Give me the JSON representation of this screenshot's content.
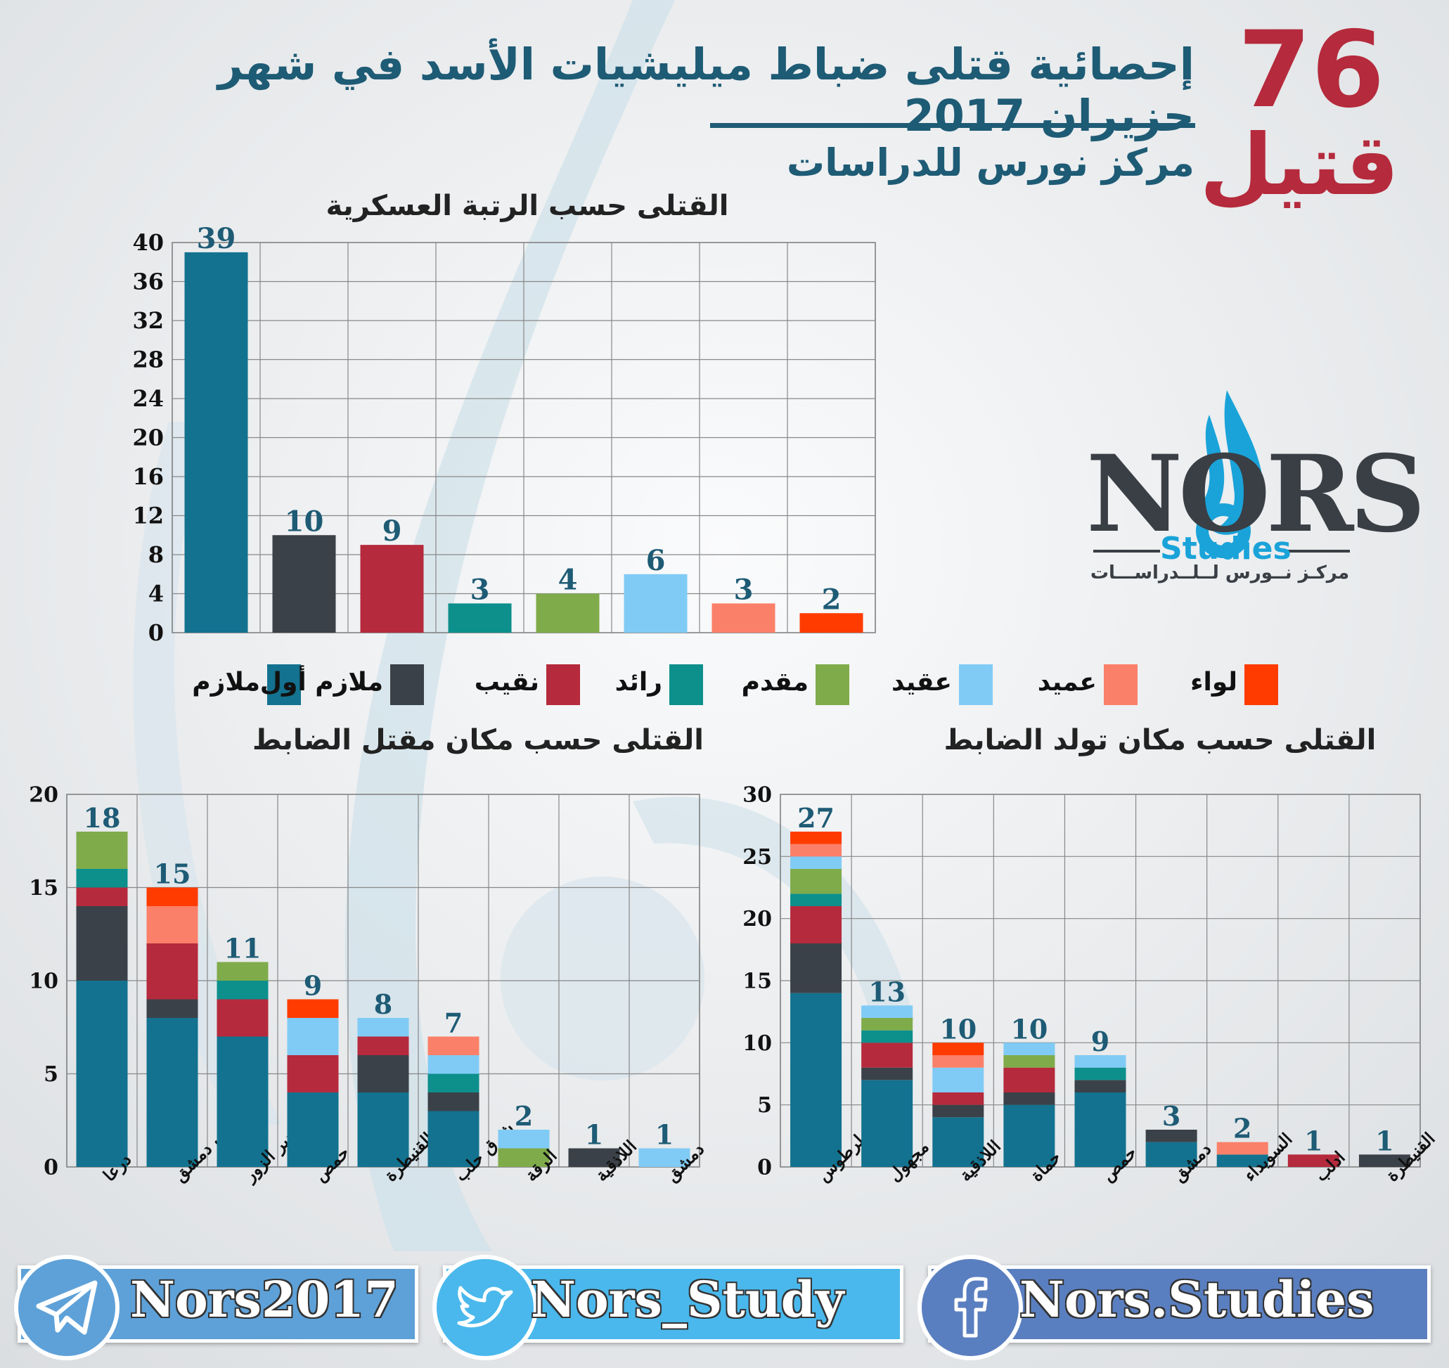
{
  "header": {
    "title": "إحصائية قتلى ضباط ميليشيات الأسد في شهر حزيران 2017",
    "subtitle": "مركز نورس للدراسات",
    "total_number": "76",
    "total_word": "قتيل"
  },
  "logo": {
    "main": "NORS",
    "studies": "Studies",
    "arabic": "مركـز نــورس لــلــدراســـات"
  },
  "legend": [
    {
      "name": "ملازم",
      "color": "#13728f"
    },
    {
      "name": "ملازم أول",
      "color": "#3b4148"
    },
    {
      "name": "نقيب",
      "color": "#b52a3c"
    },
    {
      "name": "رائد",
      "color": "#0d8f8c"
    },
    {
      "name": "مقدم",
      "color": "#7fab4a"
    },
    {
      "name": "عقيد",
      "color": "#80cbf5"
    },
    {
      "name": "عميد",
      "color": "#fb8069"
    },
    {
      "name": "لواء",
      "color": "#ff3b00"
    }
  ],
  "social": {
    "telegram": "Nors2017",
    "twitter": "Nors_Study",
    "facebook": "Nors.Studies"
  },
  "chart_data": [
    {
      "type": "bar",
      "title": "القتلى حسب الرتبة العسكرية",
      "categories": [
        "ملازم",
        "ملازم أول",
        "نقيب",
        "رائد",
        "مقدم",
        "عقيد",
        "عميد",
        "لواء"
      ],
      "values": [
        39,
        10,
        9,
        3,
        4,
        6,
        3,
        2
      ],
      "colors": [
        "#13728f",
        "#3b4148",
        "#b52a3c",
        "#0d8f8c",
        "#7fab4a",
        "#80cbf5",
        "#fb8069",
        "#ff3b00"
      ],
      "ylim": [
        0,
        40
      ],
      "yticks": [
        0,
        4,
        8,
        12,
        16,
        20,
        24,
        28,
        32,
        36,
        40
      ],
      "grid": true
    },
    {
      "type": "bar",
      "stacked": true,
      "title": "القتلى حسب مكان مقتل الضابط",
      "categories": [
        "درعا",
        "ريف دمشق",
        "دير الزور",
        "حمص",
        "القنيطرة",
        "شرق حلب",
        "الرقة",
        "اللاذقية",
        "دمشق"
      ],
      "totals": [
        18,
        15,
        11,
        9,
        8,
        7,
        2,
        1,
        1
      ],
      "series": [
        {
          "name": "ملازم",
          "values": [
            10,
            8,
            7,
            4,
            4,
            3,
            0,
            0,
            0
          ]
        },
        {
          "name": "ملازم أول",
          "values": [
            4,
            1,
            0,
            0,
            2,
            1,
            0,
            1,
            0
          ]
        },
        {
          "name": "نقيب",
          "values": [
            1,
            3,
            2,
            2,
            1,
            0,
            0,
            0,
            0
          ]
        },
        {
          "name": "رائد",
          "values": [
            1,
            0,
            1,
            0,
            0,
            1,
            0,
            0,
            0
          ]
        },
        {
          "name": "مقدم",
          "values": [
            2,
            0,
            1,
            0,
            0,
            0,
            1,
            0,
            0
          ]
        },
        {
          "name": "عقيد",
          "values": [
            0,
            0,
            0,
            2,
            1,
            1,
            1,
            0,
            1
          ]
        },
        {
          "name": "عميد",
          "values": [
            0,
            2,
            0,
            0,
            0,
            1,
            0,
            0,
            0
          ]
        },
        {
          "name": "لواء",
          "values": [
            0,
            1,
            0,
            1,
            0,
            0,
            0,
            0,
            0
          ]
        }
      ],
      "ylim": [
        0,
        20
      ],
      "yticks": [
        0,
        5,
        10,
        15,
        20
      ],
      "grid": true
    },
    {
      "type": "bar",
      "stacked": true,
      "title": "القتلى حسب مكان تولد الضابط",
      "categories": [
        "طرطوس",
        "مجهول",
        "اللاذقية",
        "حماة",
        "حمص",
        "دمشق",
        "السويداء",
        "ادلب",
        "القنيطرة"
      ],
      "totals": [
        27,
        13,
        10,
        10,
        9,
        3,
        2,
        1,
        1
      ],
      "series": [
        {
          "name": "ملازم",
          "values": [
            14,
            7,
            4,
            5,
            6,
            2,
            1,
            0,
            0
          ]
        },
        {
          "name": "ملازم أول",
          "values": [
            4,
            1,
            1,
            1,
            1,
            1,
            0,
            0,
            1
          ]
        },
        {
          "name": "نقيب",
          "values": [
            3,
            2,
            1,
            2,
            0,
            0,
            0,
            1,
            0
          ]
        },
        {
          "name": "رائد",
          "values": [
            1,
            1,
            0,
            0,
            1,
            0,
            0,
            0,
            0
          ]
        },
        {
          "name": "مقدم",
          "values": [
            2,
            1,
            0,
            1,
            0,
            0,
            0,
            0,
            0
          ]
        },
        {
          "name": "عقيد",
          "values": [
            1,
            1,
            2,
            1,
            1,
            0,
            0,
            0,
            0
          ]
        },
        {
          "name": "عميد",
          "values": [
            1,
            0,
            1,
            0,
            0,
            0,
            1,
            0,
            0
          ]
        },
        {
          "name": "لواء",
          "values": [
            1,
            0,
            1,
            0,
            0,
            0,
            0,
            0,
            0
          ]
        }
      ],
      "ylim": [
        0,
        30
      ],
      "yticks": [
        0,
        5,
        10,
        15,
        20,
        25,
        30
      ],
      "grid": true
    }
  ]
}
